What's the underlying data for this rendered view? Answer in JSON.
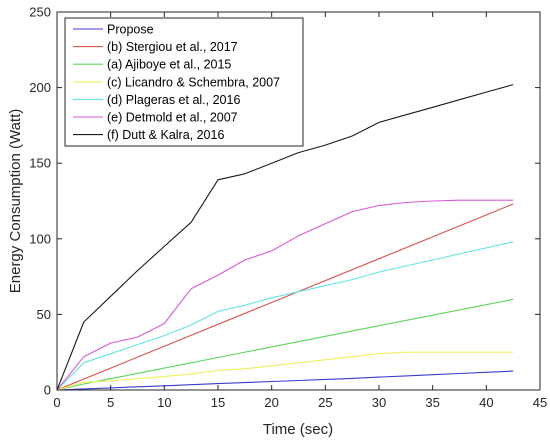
{
  "chart_data": {
    "type": "line",
    "title": "",
    "xlabel": "Time (sec)",
    "ylabel": "Energy Consumption (Watt)",
    "xlim": [
      0,
      45
    ],
    "ylim": [
      0,
      250
    ],
    "xticks": [
      0,
      5,
      10,
      15,
      20,
      25,
      30,
      35,
      40,
      45
    ],
    "yticks": [
      0,
      50,
      100,
      150,
      200,
      250
    ],
    "grid": false,
    "legend_position": "top-left",
    "series": [
      {
        "name": "Propose",
        "color": "#3a3ad0",
        "x": [
          0,
          2.5,
          5,
          7.5,
          10,
          12.5,
          15,
          17.5,
          20,
          22.5,
          25,
          27.5,
          30,
          32.5,
          35,
          37.5,
          40,
          42.5
        ],
        "y": [
          0,
          0.7,
          1.4,
          2.1,
          2.8,
          3.5,
          4.2,
          4.9,
          5.6,
          6.3,
          7,
          7.7,
          8.5,
          9.3,
          10.1,
          10.9,
          11.7,
          12.5
        ]
      },
      {
        "name": "(b) Stergiou et al., 2017",
        "color": "#d9534f",
        "x": [
          0,
          42.5
        ],
        "y": [
          0,
          123
        ]
      },
      {
        "name": "(a) Ajiboye et al., 2015",
        "color": "#5cd65c",
        "x": [
          0,
          2.5,
          5,
          10,
          15,
          20,
          25,
          30,
          35,
          42.5
        ],
        "y": [
          0,
          4,
          7.5,
          14.5,
          21.5,
          28.5,
          35.5,
          42.5,
          49.5,
          60
        ]
      },
      {
        "name": "(c) Licandro & Schembra, 2007",
        "color": "#f0f060",
        "x": [
          0,
          2.5,
          5,
          7.5,
          10,
          12.5,
          15,
          17.5,
          20,
          22.5,
          25,
          27.5,
          30,
          32.5,
          35,
          37.5,
          40,
          42.5
        ],
        "y": [
          0,
          5,
          6,
          7.5,
          9,
          10.5,
          13,
          14,
          16,
          18,
          20,
          22,
          24,
          25,
          25,
          25,
          25,
          25
        ]
      },
      {
        "name": "(d) Plageras et al., 2016",
        "color": "#66e3e3",
        "x": [
          0,
          2.5,
          5,
          7.5,
          10,
          12.5,
          15,
          17.5,
          20,
          22.5,
          25,
          27.5,
          30,
          32.5,
          35,
          37.5,
          40,
          42.5
        ],
        "y": [
          0,
          18,
          24,
          30,
          36,
          43,
          52,
          56,
          61,
          65,
          69,
          73,
          78,
          82,
          86,
          90,
          94,
          98
        ]
      },
      {
        "name": "(e) Detmold et al., 2007",
        "color": "#d65cd6",
        "x": [
          0,
          2.5,
          5,
          7.5,
          10,
          12.5,
          15,
          17.5,
          20,
          22.5,
          25,
          27.5,
          30,
          32.5,
          35,
          37.5,
          40,
          42.5
        ],
        "y": [
          0,
          22,
          31,
          35,
          44,
          67,
          76,
          86,
          92,
          102,
          110,
          118,
          122,
          124,
          125,
          125.5,
          125.5,
          125.5
        ]
      },
      {
        "name": "(f) Dutt & Kalra, 2016",
        "color": "#1a1a1a",
        "x": [
          0,
          2.5,
          5,
          7.5,
          10,
          12.5,
          15,
          17.5,
          20,
          22.5,
          25,
          27.5,
          30,
          32.5,
          35,
          37.5,
          40,
          42.5
        ],
        "y": [
          0,
          45,
          62,
          79,
          95,
          111,
          139,
          143,
          150,
          157,
          162,
          168,
          177,
          182,
          187,
          192,
          197,
          202
        ]
      }
    ]
  }
}
